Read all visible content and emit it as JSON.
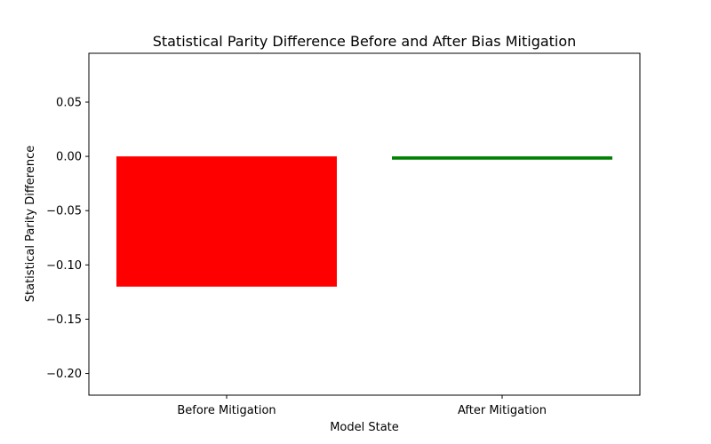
{
  "chart_data": {
    "type": "bar",
    "title": "Statistical Parity Difference Before and After Bias Mitigation",
    "xlabel": "Model State",
    "ylabel": "Statistical Parity Difference",
    "categories": [
      "Before Mitigation",
      "After Mitigation"
    ],
    "values": [
      -0.12,
      -0.003
    ],
    "colors": [
      "#ff0000",
      "#008000"
    ],
    "ylim": [
      -0.22,
      0.095
    ],
    "yticks": [
      -0.2,
      -0.15,
      -0.1,
      -0.05,
      0.0,
      0.05
    ],
    "ytick_labels": [
      "−0.20",
      "−0.15",
      "−0.10",
      "−0.05",
      "0.00",
      "0.05"
    ],
    "grid": false,
    "legend": "none"
  }
}
